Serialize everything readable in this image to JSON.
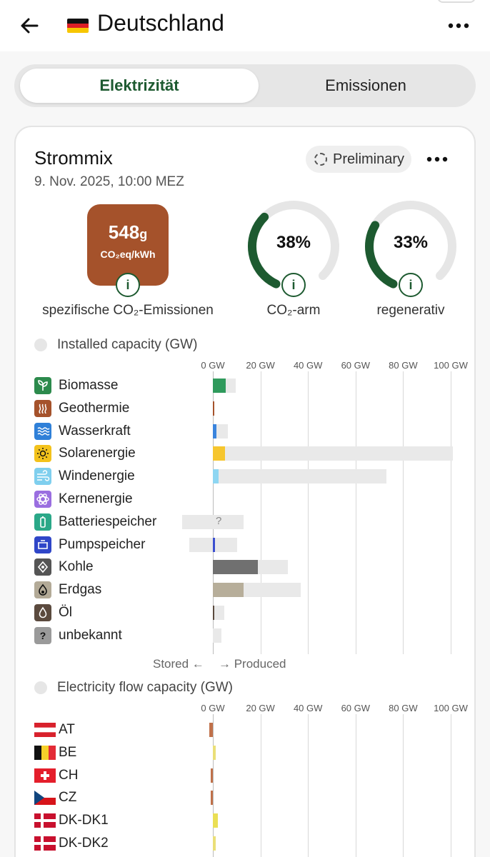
{
  "header": {
    "title": "Deutschland",
    "back_icon": "arrow-left-icon",
    "menu_icon": "more-horizontal-icon"
  },
  "tabs": [
    {
      "label": "Elektrizität",
      "active": true
    },
    {
      "label": "Emissionen",
      "active": false
    }
  ],
  "card": {
    "title": "Strommix",
    "date": "9. Nov. 2025, 10:00 MEZ",
    "preliminary_label": "Preliminary",
    "emissions": {
      "value": "548",
      "unit_small": "g",
      "unit": "CO₂eq/kWh",
      "label": "spezifische CO₂-Emissionen",
      "color": "#a5522b"
    },
    "co2_free": {
      "value": "38%",
      "percent": 38,
      "label": "CO₂-arm"
    },
    "renewable": {
      "value": "33%",
      "percent": 33,
      "label": "regenerativ"
    }
  },
  "installed": {
    "title": "Installed capacity (GW)",
    "ticks": [
      "0 GW",
      "20 GW",
      "40 GW",
      "60 GW",
      "80 GW",
      "100 GW"
    ],
    "stored_label": "Stored ←",
    "produced_label": "→ Produced",
    "rows": [
      {
        "label": "Biomasse",
        "icon": "leaf-icon",
        "icon_color": "#2c8a4c",
        "bar_color": "#2f9a5c",
        "produced": 5.5,
        "capacity": 9.5,
        "stored_capacity": 0
      },
      {
        "label": "Geothermie",
        "icon": "geothermal-icon",
        "icon_color": "#a5522b",
        "bar_color": "#a5522b",
        "produced": 0.1,
        "capacity": 0.2,
        "stored_capacity": 0
      },
      {
        "label": "Wasserkraft",
        "icon": "water-icon",
        "icon_color": "#2f80d8",
        "bar_color": "#3a84dd",
        "produced": 1.4,
        "capacity": 6.4,
        "stored_capacity": 0
      },
      {
        "label": "Solarenergie",
        "icon": "sun-icon",
        "icon_color": "#f3c21c",
        "bar_color": "#f6c62e",
        "produced": 5,
        "capacity": 101,
        "stored_capacity": 0
      },
      {
        "label": "Windenergie",
        "icon": "wind-icon",
        "icon_color": "#7fcfee",
        "bar_color": "#8ed6f2",
        "produced": 2.5,
        "capacity": 73,
        "stored_capacity": 0
      },
      {
        "label": "Kernenergie",
        "icon": "atom-icon",
        "icon_color": "#9a6ee0",
        "bar_color": "#9a6ee0",
        "produced": 0,
        "capacity": 0,
        "stored_capacity": 0
      },
      {
        "label": "Batteriespeicher",
        "icon": "battery-icon",
        "icon_color": "#2aa888",
        "bar_color": "#2aa888",
        "produced": 0,
        "capacity": 13,
        "stored_capacity": 13,
        "unknown_label": "?"
      },
      {
        "label": "Pumpspeicher",
        "icon": "pumped-storage-icon",
        "icon_color": "#2f46c8",
        "bar_color": "#3b4fd0",
        "produced": 0.9,
        "capacity": 10.3,
        "stored_capacity": 10
      },
      {
        "label": "Kohle",
        "icon": "coal-icon",
        "icon_color": "#555555",
        "bar_color": "#707070",
        "produced": 19,
        "capacity": 31.5,
        "stored_capacity": 0
      },
      {
        "label": "Erdgas",
        "icon": "gas-icon",
        "icon_color": "#b3aa97",
        "bar_color": "#b7ae9a",
        "produced": 13,
        "capacity": 37,
        "stored_capacity": 0
      },
      {
        "label": "Öl",
        "icon": "oil-drop-icon",
        "icon_color": "#5b4a3e",
        "bar_color": "#5b4a3e",
        "produced": 0.3,
        "capacity": 4.7,
        "stored_capacity": 0
      },
      {
        "label": "unbekannt",
        "icon": "question-icon",
        "icon_color": "#9a9a9a",
        "bar_color": "#9a9a9a",
        "produced": 0,
        "capacity": 3.5,
        "stored_capacity": 0
      }
    ]
  },
  "flow": {
    "title": "Electricity flow capacity (GW)",
    "ticks": [
      "0 GW",
      "20 GW",
      "40 GW",
      "60 GW",
      "80 GW",
      "100 GW"
    ],
    "rows": [
      {
        "label": "AT",
        "flag": "austria-flag-icon",
        "bar_color": "#c0714a",
        "value": -1.6
      },
      {
        "label": "BE",
        "flag": "belgium-flag-icon",
        "bar_color": "#eadf78",
        "value": 1.2
      },
      {
        "label": "CH",
        "flag": "switzerland-flag-icon",
        "bar_color": "#c0714a",
        "value": -0.8
      },
      {
        "label": "CZ",
        "flag": "czechia-flag-icon",
        "bar_color": "#c0714a",
        "value": -0.8
      },
      {
        "label": "DK-DK1",
        "flag": "denmark-flag-icon",
        "bar_color": "#eadf55",
        "value": 2.1
      },
      {
        "label": "DK-DK2",
        "flag": "denmark-flag-icon",
        "bar_color": "#eadf78",
        "value": 1.2
      }
    ]
  }
}
